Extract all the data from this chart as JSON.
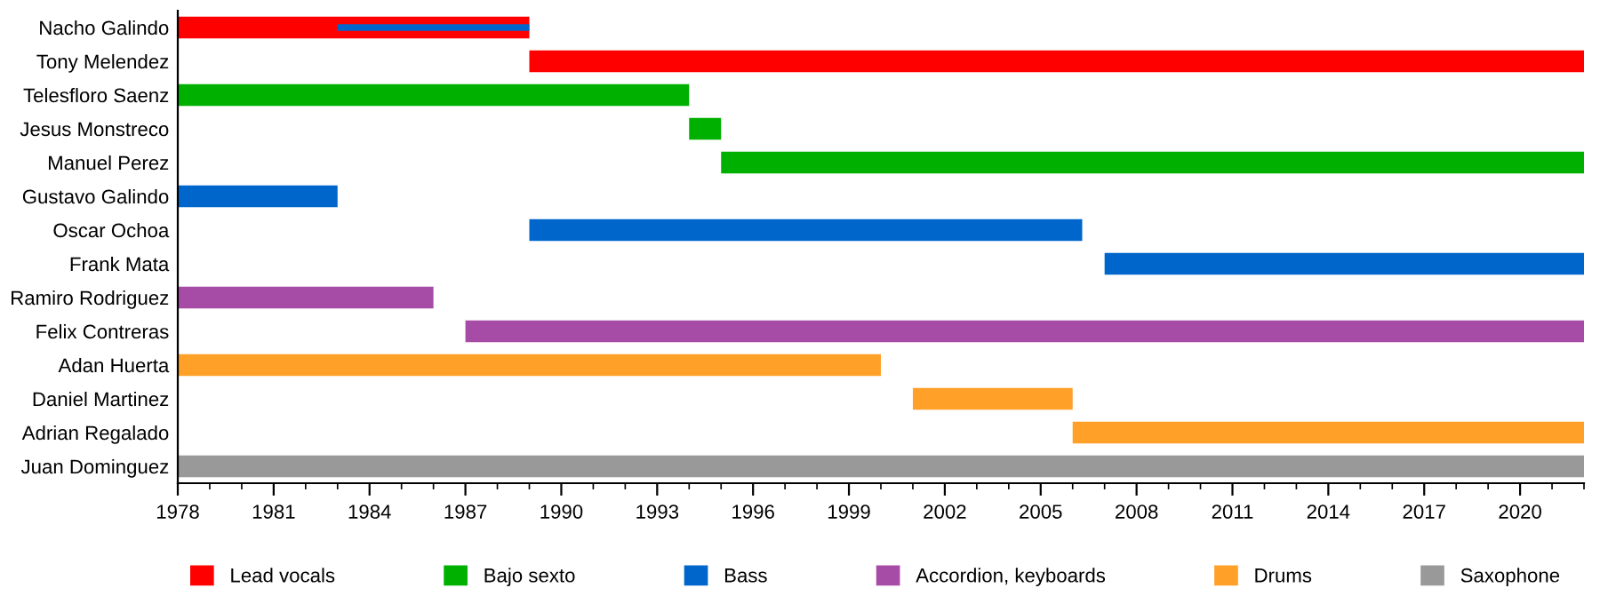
{
  "chart_data": {
    "type": "bar",
    "orientation": "horizontal",
    "legend": "bottom",
    "grid": false,
    "categories": [
      "Nacho Galindo",
      "Tony Melendez",
      "Telesfloro Saenz",
      "Jesus Monstreco",
      "Manuel Perez",
      "Gustavo Galindo",
      "Oscar Ochoa",
      "Frank Mata",
      "Ramiro Rodriguez",
      "Felix Contreras",
      "Adan Huerta",
      "Daniel Martinez",
      "Adrian Regalado",
      "Juan Dominguez"
    ],
    "xlim": [
      1978,
      2022
    ],
    "xticks": [
      1978,
      1981,
      1984,
      1987,
      1990,
      1993,
      1996,
      1999,
      2002,
      2005,
      2008,
      2011,
      2014,
      2017,
      2020
    ],
    "series": [
      {
        "name": "Lead vocals",
        "color": "#ff0000",
        "base": [
          1978,
          1989,
          null,
          null,
          null,
          null,
          null,
          null,
          null,
          null,
          null,
          null,
          null,
          null
        ],
        "values": [
          11,
          33,
          null,
          null,
          null,
          null,
          null,
          null,
          null,
          null,
          null,
          null,
          null,
          null
        ]
      },
      {
        "name": "Bajo sexto",
        "color": "#00b000",
        "base": [
          null,
          null,
          1978,
          1994,
          1995,
          null,
          null,
          null,
          null,
          null,
          null,
          null,
          null,
          null
        ],
        "values": [
          null,
          null,
          16,
          1,
          27,
          null,
          null,
          null,
          null,
          null,
          null,
          null,
          null,
          null
        ]
      },
      {
        "name": "Bass",
        "color": "#0066cc",
        "base": [
          1983,
          null,
          null,
          null,
          null,
          1978,
          1989,
          2007,
          null,
          null,
          null,
          null,
          null,
          null
        ],
        "values": [
          6,
          null,
          null,
          null,
          null,
          5,
          17.3,
          15,
          null,
          null,
          null,
          null,
          null,
          null
        ]
      },
      {
        "name": "Accordion, keyboards",
        "color": "#a64ca6",
        "base": [
          null,
          null,
          null,
          null,
          null,
          null,
          null,
          null,
          1978,
          1987,
          null,
          null,
          null,
          null
        ],
        "values": [
          null,
          null,
          null,
          null,
          null,
          null,
          null,
          null,
          8,
          35,
          null,
          null,
          null,
          null
        ]
      },
      {
        "name": "Drums",
        "color": "#ffa028",
        "base": [
          null,
          null,
          null,
          null,
          null,
          null,
          null,
          null,
          null,
          null,
          1978,
          2001,
          2006,
          null
        ],
        "values": [
          null,
          null,
          null,
          null,
          null,
          null,
          null,
          null,
          null,
          null,
          22,
          5,
          16,
          null
        ]
      },
      {
        "name": "Saxophone",
        "color": "#999999",
        "base": [
          null,
          null,
          null,
          null,
          null,
          null,
          null,
          null,
          null,
          null,
          null,
          null,
          null,
          1978
        ],
        "values": [
          null,
          null,
          null,
          null,
          null,
          null,
          null,
          null,
          null,
          null,
          null,
          null,
          null,
          44
        ]
      }
    ]
  }
}
